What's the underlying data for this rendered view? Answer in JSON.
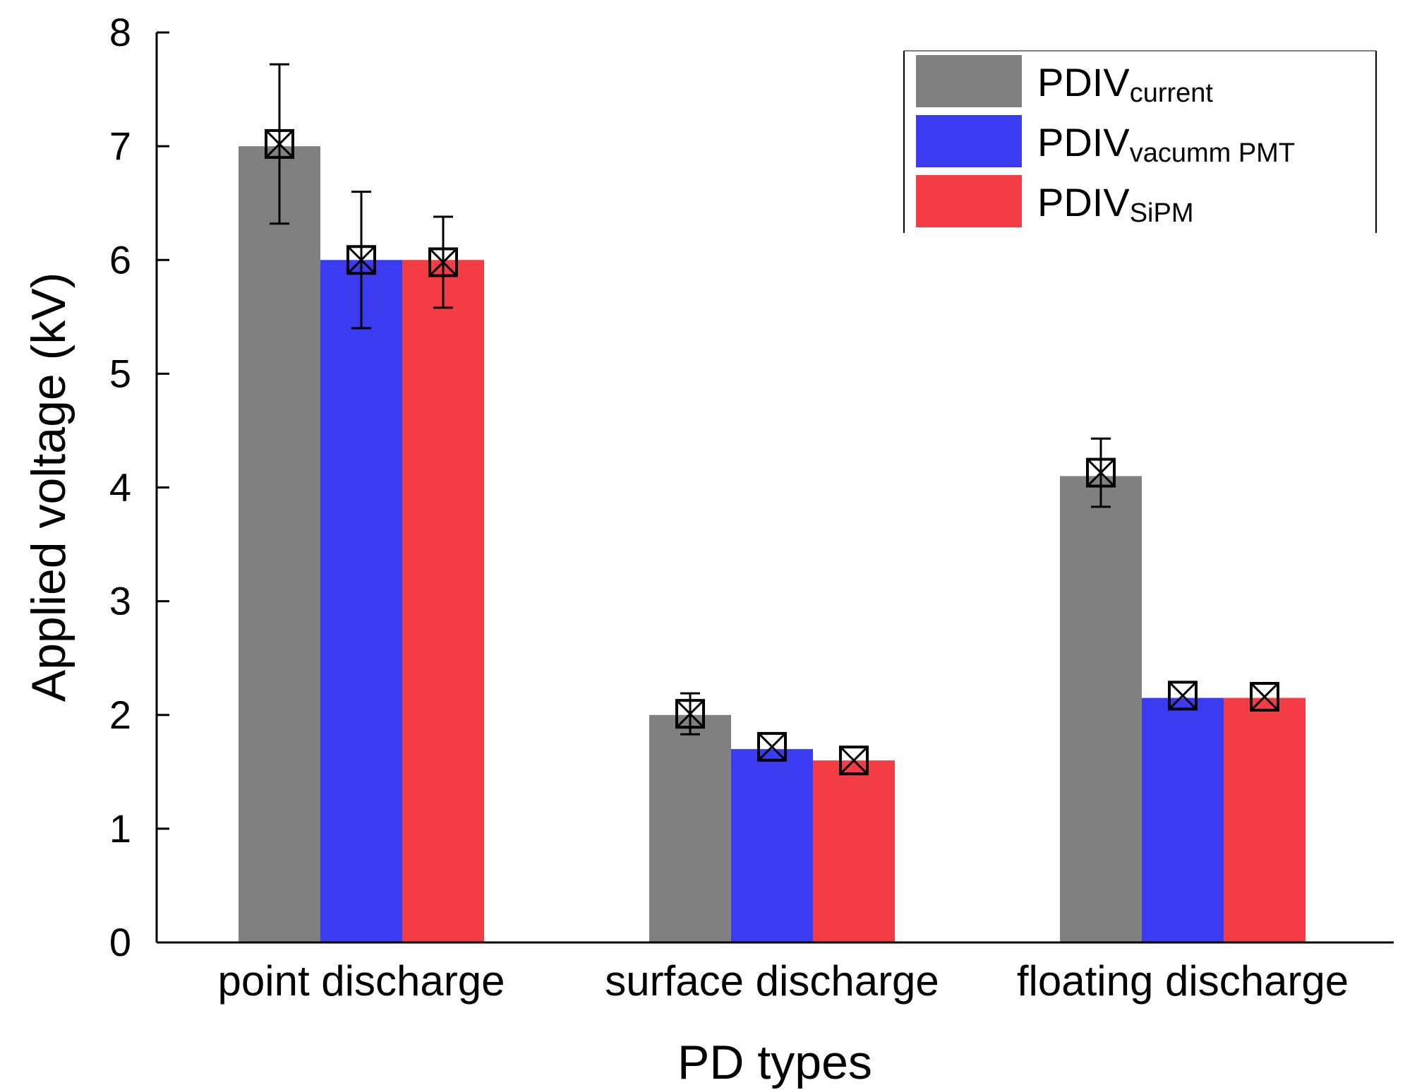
{
  "chart_data": {
    "type": "bar",
    "title": "",
    "xlabel": "PD types",
    "ylabel": "Applied voltage (kV)",
    "ylim": [
      0,
      8
    ],
    "yticks": [
      "0",
      "1",
      "2",
      "3",
      "4",
      "5",
      "6",
      "7",
      "8"
    ],
    "categories": [
      "point discharge",
      "surface discharge",
      "floating discharge"
    ],
    "legend_position": "top-right",
    "series": [
      {
        "name": "PDIV",
        "subscript": "current",
        "color": "#808080",
        "values": [
          7.0,
          2.0,
          4.1
        ],
        "markers": [
          7.02,
          2.01,
          4.13
        ],
        "errors": [
          0.7,
          0.18,
          0.3
        ]
      },
      {
        "name": "PDIV",
        "subscript": "vacumm PMT",
        "color": "#3b3bf2",
        "values": [
          6.0,
          1.7,
          2.15
        ],
        "markers": [
          6.0,
          1.72,
          2.17
        ],
        "errors": [
          0.6,
          0.0,
          0.0
        ]
      },
      {
        "name": "PDIV",
        "subscript": "SiPM",
        "color": "#f43c44",
        "values": [
          6.0,
          1.6,
          2.15
        ],
        "markers": [
          5.98,
          1.6,
          2.16
        ],
        "errors": [
          0.4,
          0.0,
          0.0
        ]
      }
    ]
  }
}
